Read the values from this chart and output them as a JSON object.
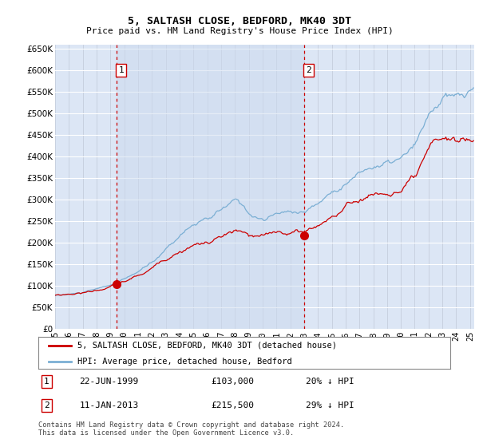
{
  "title": "5, SALTASH CLOSE, BEDFORD, MK40 3DT",
  "subtitle": "Price paid vs. HM Land Registry's House Price Index (HPI)",
  "ylim": [
    0,
    660000
  ],
  "yticks": [
    0,
    50000,
    100000,
    150000,
    200000,
    250000,
    300000,
    350000,
    400000,
    450000,
    500000,
    550000,
    600000,
    650000
  ],
  "xlim_start": 1995.0,
  "xlim_end": 2025.3,
  "plot_bg_color": "#dce6f5",
  "grid_color": "#c8d0dc",
  "hpi_color": "#7bafd4",
  "price_color": "#cc0000",
  "dashed_line_color": "#cc0000",
  "shade_color": "#dde8f5",
  "transaction1": {
    "date_num": 1999.47,
    "price": 103000,
    "label": "1",
    "date_str": "22-JUN-1999",
    "pct": "20% ↓ HPI"
  },
  "transaction2": {
    "date_num": 2013.03,
    "price": 215500,
    "label": "2",
    "date_str": "11-JAN-2013",
    "pct": "29% ↓ HPI"
  },
  "legend_line1": "5, SALTASH CLOSE, BEDFORD, MK40 3DT (detached house)",
  "legend_line2": "HPI: Average price, detached house, Bedford",
  "footnote": "Contains HM Land Registry data © Crown copyright and database right 2024.\nThis data is licensed under the Open Government Licence v3.0."
}
